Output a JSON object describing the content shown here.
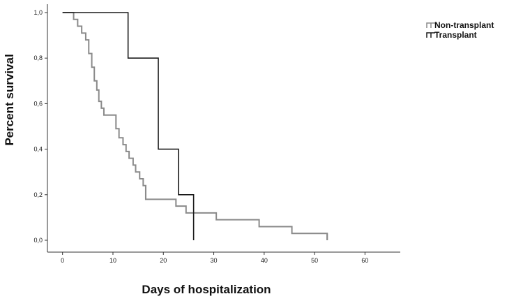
{
  "chart_data": {
    "type": "line",
    "step": true,
    "title": "",
    "xlabel": "Days of hospitalization",
    "ylabel": "Percent survival",
    "xlim": [
      -3,
      67
    ],
    "ylim": [
      0,
      1.0
    ],
    "x_ticks": [
      0,
      10,
      20,
      30,
      40,
      50,
      60
    ],
    "x_tick_labels": [
      "0",
      "10",
      "20",
      "30",
      "40",
      "50",
      "60"
    ],
    "y_ticks": [
      0,
      0.2,
      0.4,
      0.6,
      0.8,
      1.0
    ],
    "y_tick_labels": [
      "0,0",
      "0,2",
      "0,4",
      "0,6",
      "0,8",
      "1,0"
    ],
    "grid": false,
    "legend": "top-right",
    "series": [
      {
        "name": "Non-transplant",
        "color": "#8a8a8a",
        "x": [
          0,
          2.2,
          3,
          3.8,
          4.6,
          5.2,
          5.8,
          6.3,
          6.8,
          7.2,
          7.7,
          8.2,
          8.8,
          10.6,
          11.2,
          12,
          12.6,
          13.2,
          14,
          14.5,
          15.3,
          16,
          16.5,
          19.5,
          22.5,
          24.5,
          26,
          30.5,
          39,
          45.5,
          52.5
        ],
        "y": [
          1.0,
          0.97,
          0.94,
          0.91,
          0.88,
          0.82,
          0.76,
          0.7,
          0.66,
          0.61,
          0.58,
          0.55,
          0.55,
          0.49,
          0.45,
          0.42,
          0.39,
          0.36,
          0.33,
          0.3,
          0.27,
          0.24,
          0.18,
          0.18,
          0.15,
          0.12,
          0.12,
          0.09,
          0.06,
          0.03,
          0.0
        ],
        "censored_end": 52.5
      },
      {
        "name": "Transplant",
        "color": "#1a1a1a",
        "x": [
          0,
          13,
          19,
          23,
          26
        ],
        "y": [
          1.0,
          0.8,
          0.4,
          0.2,
          0.0
        ]
      }
    ]
  }
}
